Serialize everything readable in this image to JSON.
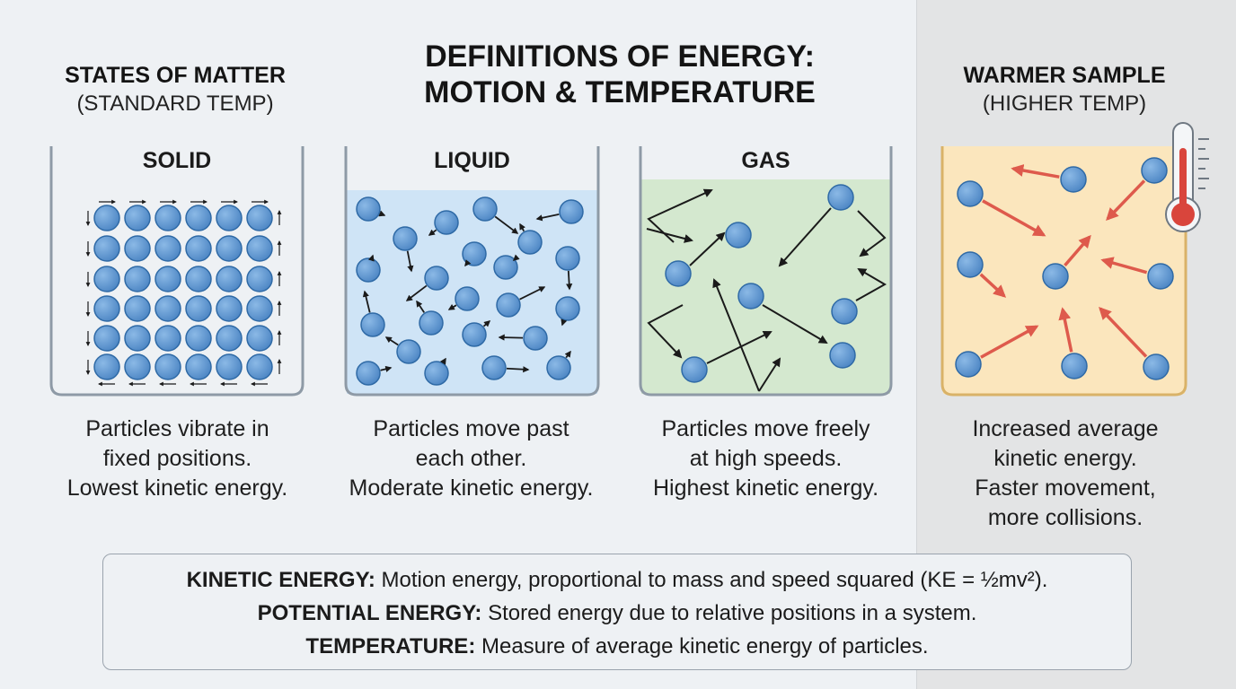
{
  "title": {
    "line1": "DEFINITIONS OF ENERGY:",
    "line2": "MOTION & TEMPERATURE"
  },
  "left_heading": {
    "title": "STATES OF MATTER",
    "subtitle": "(STANDARD TEMP)"
  },
  "right_heading": {
    "title": "WARMER SAMPLE",
    "subtitle": "(HIGHER TEMP)"
  },
  "states": [
    {
      "label": "SOLID",
      "caption": [
        "Particles vibrate in",
        "fixed positions.",
        "Lowest kinetic energy."
      ]
    },
    {
      "label": "LIQUID",
      "caption": [
        "Particles move past",
        "each other.",
        "Moderate kinetic energy."
      ]
    },
    {
      "label": "GAS",
      "caption": [
        "Particles move freely",
        "at high speeds.",
        "Highest kinetic energy."
      ]
    }
  ],
  "warmer_caption": [
    "Increased average",
    "kinetic energy.",
    "Faster movement,",
    "more collisions."
  ],
  "definitions": [
    {
      "term": "KINETIC ENERGY:",
      "text": " Motion energy, proportional to mass and speed squared (KE = ½mv²)."
    },
    {
      "term": "POTENTIAL ENERGY:",
      "text": " Stored energy due to relative positions in a system."
    },
    {
      "term": "TEMPERATURE:",
      "text": " Measure of average kinetic energy of particles."
    }
  ],
  "colors": {
    "particle": "#5b93cf",
    "particle_stroke": "#2f6aa6",
    "liquid_fill": "#cfe4f6",
    "gas_fill": "#d4e8cf",
    "warm_fill": "#fbe6bd",
    "hot_arrow": "#de5a4c",
    "thermometer_red": "#d9453c"
  },
  "icons": [
    "thermometer-icon"
  ]
}
